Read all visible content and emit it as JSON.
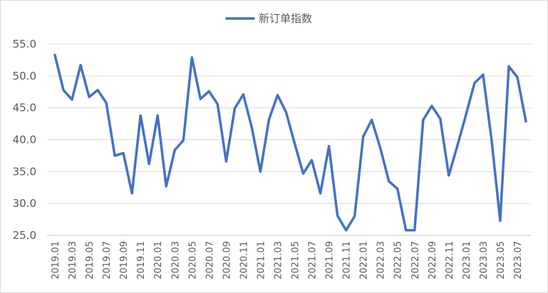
{
  "chart_data": {
    "type": "line",
    "title": "",
    "legend": {
      "placement": "top-center"
    },
    "grid": true,
    "ylim": [
      25,
      55
    ],
    "yticks": [
      "25.0",
      "30.0",
      "35.0",
      "40.0",
      "45.0",
      "50.0",
      "55.0"
    ],
    "x": [
      "2019.01",
      "2019.02",
      "2019.03",
      "2019.04",
      "2019.05",
      "2019.06",
      "2019.07",
      "2019.08",
      "2019.09",
      "2019.10",
      "2019.11",
      "2019.12",
      "2020.01",
      "2020.02",
      "2020.03",
      "2020.04",
      "2020.05",
      "2020.06",
      "2020.07",
      "2020.08",
      "2020.09",
      "2020.10",
      "2020.11",
      "2020.12",
      "2021.01",
      "2021.02",
      "2021.03",
      "2021.04",
      "2021.05",
      "2021.06",
      "2021.07",
      "2021.08",
      "2021.09",
      "2021.10",
      "2021.11",
      "2021.12",
      "2022.01",
      "2022.02",
      "2022.03",
      "2022.04",
      "2022.05",
      "2022.06",
      "2022.07",
      "2022.08",
      "2022.09",
      "2022.10",
      "2022.11",
      "2022.12",
      "2023.01",
      "2023.02",
      "2023.03",
      "2023.04",
      "2023.05",
      "2023.06",
      "2023.07",
      "2023.08"
    ],
    "xtick_labels": [
      "2019.01",
      "2019.03",
      "2019.05",
      "2019.07",
      "2019.09",
      "2019.11",
      "2020.01",
      "2020.03",
      "2020.05",
      "2020.07",
      "2020.09",
      "2020.11",
      "2021.01",
      "2021.03",
      "2021.05",
      "2021.07",
      "2021.09",
      "2021.11",
      "2022.01",
      "2022.03",
      "2022.05",
      "2022.07",
      "2022.09",
      "2022.11",
      "2023.01",
      "2023.03",
      "2023.05",
      "2023.07"
    ],
    "series": [
      {
        "name": "新订单指数",
        "color": "#4472C4",
        "values": [
          53.3,
          47.8,
          46.3,
          51.7,
          46.7,
          47.8,
          45.8,
          37.5,
          37.9,
          31.6,
          43.8,
          36.2,
          43.8,
          32.7,
          38.4,
          39.9,
          52.9,
          46.4,
          47.6,
          45.6,
          36.6,
          44.9,
          47.1,
          41.9,
          35.0,
          43.2,
          47.0,
          44.3,
          39.4,
          34.7,
          36.8,
          31.6,
          39.0,
          28.1,
          25.8,
          28.0,
          40.5,
          43.1,
          38.7,
          33.5,
          32.3,
          25.8,
          25.8,
          43.1,
          45.3,
          43.3,
          34.4,
          39.1,
          43.9,
          48.9,
          50.2,
          39.9,
          27.3,
          51.5,
          49.8,
          42.9
        ]
      }
    ]
  }
}
